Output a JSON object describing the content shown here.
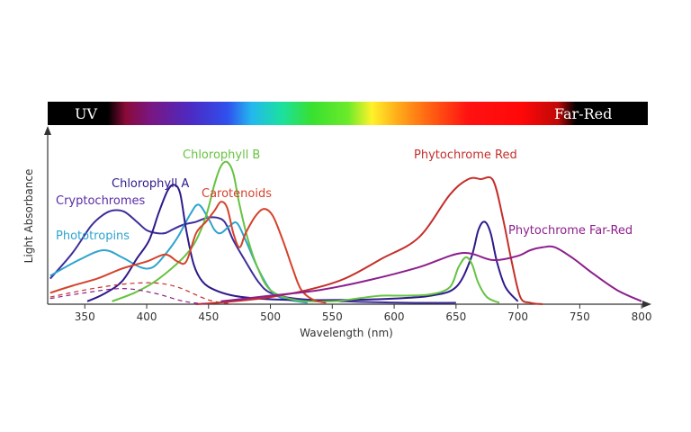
{
  "chart_data": {
    "type": "line",
    "title": "",
    "xlabel": "Wavelength (nm)",
    "ylabel": "Light Absorbance",
    "xlim": [
      320,
      805
    ],
    "ylim": [
      0,
      1
    ],
    "xticks": [
      350,
      400,
      450,
      500,
      550,
      600,
      650,
      700,
      750,
      800
    ],
    "grid": false,
    "spectrum_bar": {
      "left_label": "UV",
      "right_label": "Far-Red"
    },
    "series": [
      {
        "name": "Cryptochromes",
        "color": "#3d2d9a",
        "x": [
          322,
          340,
          355,
          365,
          373,
          382,
          392,
          400,
          408,
          415,
          422,
          430,
          440,
          450,
          460,
          465,
          470,
          480,
          490,
          500,
          520,
          560,
          610,
          650
        ],
        "y": [
          0.18,
          0.36,
          0.55,
          0.63,
          0.66,
          0.65,
          0.58,
          0.52,
          0.5,
          0.5,
          0.53,
          0.56,
          0.58,
          0.61,
          0.6,
          0.55,
          0.45,
          0.3,
          0.16,
          0.08,
          0.04,
          0.02,
          0.01,
          0.01
        ]
      },
      {
        "name": "Phototropins",
        "color": "#2fa3cf",
        "x": [
          322,
          345,
          365,
          380,
          395,
          405,
          415,
          425,
          435,
          442,
          450,
          455,
          460,
          467,
          473,
          480,
          490,
          500,
          510,
          530
        ],
        "y": [
          0.2,
          0.31,
          0.38,
          0.33,
          0.26,
          0.26,
          0.35,
          0.47,
          0.63,
          0.7,
          0.6,
          0.52,
          0.5,
          0.55,
          0.57,
          0.45,
          0.25,
          0.1,
          0.04,
          0.01
        ]
      },
      {
        "name": "Chlorophyll A",
        "color": "#2f1a8a",
        "x": [
          352,
          365,
          380,
          392,
          402,
          410,
          417,
          422,
          427,
          432,
          438,
          445,
          455,
          470,
          490,
          520,
          560,
          600,
          630,
          650,
          662,
          668,
          673,
          678,
          683,
          690,
          700
        ],
        "y": [
          0.02,
          0.07,
          0.16,
          0.32,
          0.45,
          0.65,
          0.8,
          0.84,
          0.78,
          0.52,
          0.28,
          0.16,
          0.1,
          0.06,
          0.04,
          0.03,
          0.03,
          0.04,
          0.06,
          0.12,
          0.32,
          0.52,
          0.58,
          0.5,
          0.3,
          0.12,
          0.02
        ]
      },
      {
        "name": "Chlorophyll B",
        "color": "#66c341",
        "x": [
          372,
          390,
          405,
          420,
          432,
          440,
          448,
          455,
          460,
          465,
          470,
          475,
          482,
          490,
          500,
          520,
          550,
          570,
          590,
          610,
          630,
          645,
          652,
          658,
          663,
          668,
          675,
          685
        ],
        "y": [
          0.02,
          0.08,
          0.15,
          0.25,
          0.35,
          0.45,
          0.62,
          0.85,
          0.97,
          1.0,
          0.92,
          0.7,
          0.45,
          0.25,
          0.1,
          0.03,
          0.02,
          0.04,
          0.06,
          0.06,
          0.07,
          0.12,
          0.26,
          0.33,
          0.28,
          0.15,
          0.05,
          0.01
        ]
      },
      {
        "name": "Carotenoids",
        "color": "#d4432c",
        "x": [
          322,
          340,
          360,
          380,
          400,
          415,
          425,
          432,
          440,
          448,
          455,
          460,
          465,
          470,
          475,
          480,
          488,
          495,
          502,
          510,
          518,
          525,
          535,
          545
        ],
        "y": [
          0.08,
          0.13,
          0.18,
          0.25,
          0.3,
          0.35,
          0.3,
          0.3,
          0.5,
          0.58,
          0.66,
          0.72,
          0.68,
          0.5,
          0.4,
          0.5,
          0.62,
          0.67,
          0.62,
          0.45,
          0.25,
          0.1,
          0.03,
          0.01
        ]
      },
      {
        "name": "Phytochrome Red",
        "color": "#c42f2a",
        "x": [
          440,
          470,
          500,
          530,
          560,
          590,
          620,
          645,
          660,
          670,
          680,
          688,
          695,
          702,
          710,
          720
        ],
        "y": [
          0.0,
          0.02,
          0.05,
          0.1,
          0.18,
          0.32,
          0.47,
          0.77,
          0.88,
          0.88,
          0.87,
          0.6,
          0.3,
          0.05,
          0.01,
          0.0
        ]
      },
      {
        "name": "Phytochrome Far-Red",
        "color": "#8c1f8c",
        "x": [
          460,
          500,
          540,
          580,
          620,
          655,
          680,
          700,
          710,
          720,
          730,
          745,
          760,
          780,
          800
        ],
        "y": [
          0.02,
          0.06,
          0.1,
          0.17,
          0.26,
          0.36,
          0.31,
          0.34,
          0.38,
          0.4,
          0.4,
          0.32,
          0.22,
          0.1,
          0.02
        ]
      },
      {
        "name": "",
        "color": "#c42f2a",
        "dashed": true,
        "x": [
          322,
          350,
          380,
          405,
          425,
          450,
          470
        ],
        "y": [
          0.05,
          0.1,
          0.14,
          0.15,
          0.12,
          0.03,
          0.0
        ]
      },
      {
        "name": "",
        "color": "#8c1f8c",
        "dashed": true,
        "x": [
          322,
          350,
          380,
          405,
          430,
          450
        ],
        "y": [
          0.04,
          0.08,
          0.11,
          0.08,
          0.02,
          0.0
        ]
      }
    ]
  }
}
